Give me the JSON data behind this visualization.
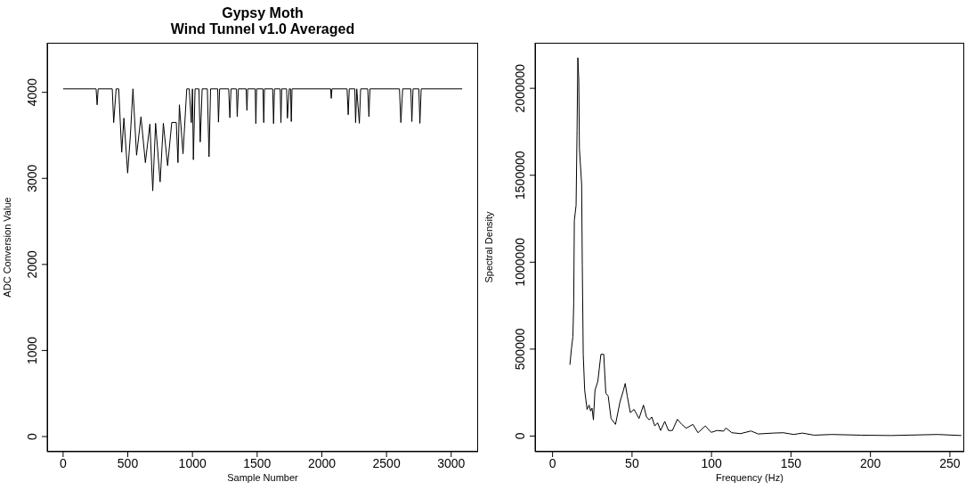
{
  "chart_data": [
    {
      "type": "line",
      "title": "Gypsy Moth",
      "subtitle": "Wind Tunnel v1.0 Averaged",
      "xlabel": "Sample Number",
      "ylabel": "ADC Conversion Value",
      "color": "#000000",
      "grid": false,
      "x": [
        0,
        255,
        263,
        271,
        380,
        391,
        410,
        430,
        453,
        470,
        499,
        520,
        540,
        568,
        602,
        636,
        671,
        693,
        715,
        750,
        775,
        808,
        840,
        875,
        888,
        899,
        927,
        956,
        975,
        991,
        1000,
        1007,
        1020,
        1050,
        1060,
        1075,
        1115,
        1128,
        1140,
        1195,
        1201,
        1210,
        1280,
        1289,
        1298,
        1340,
        1346,
        1355,
        1415,
        1421,
        1427,
        1485,
        1490,
        1496,
        1545,
        1551,
        1557,
        1620,
        1627,
        1634,
        1678,
        1684,
        1690,
        1728,
        1734,
        1748,
        1758,
        1764,
        1770,
        2068,
        2073,
        2078,
        2195,
        2204,
        2212,
        2255,
        2261,
        2270,
        2290,
        2300,
        2355,
        2364,
        2372,
        2600,
        2611,
        2625,
        2688,
        2696,
        2705,
        2750,
        2758,
        2768,
        3085
      ],
      "values": [
        4040,
        4040,
        3855,
        4040,
        4040,
        3648,
        4040,
        4040,
        3303,
        3700,
        3062,
        3500,
        4040,
        3269,
        3717,
        3183,
        3631,
        2855,
        3640,
        2959,
        3640,
        3148,
        3650,
        3650,
        3183,
        3855,
        3286,
        4040,
        4040,
        3648,
        4040,
        3217,
        4040,
        4040,
        3423,
        4040,
        4040,
        3251,
        4040,
        4040,
        3653,
        4040,
        4040,
        3705,
        4040,
        4040,
        3717,
        4040,
        4040,
        3790,
        4040,
        4040,
        3637,
        4040,
        4040,
        3648,
        4040,
        4040,
        3637,
        4040,
        4040,
        3648,
        4040,
        4040,
        3700,
        4040,
        4040,
        3660,
        4040,
        4040,
        3930,
        4040,
        4040,
        3740,
        4040,
        4040,
        3648,
        4040,
        3640,
        4040,
        4040,
        3717,
        4040,
        4040,
        3648,
        4040,
        4040,
        3660,
        4040,
        4040,
        3640,
        4040,
        4040
      ],
      "xlim": [
        -123,
        3208
      ],
      "ylim": [
        -176,
        4576
      ],
      "xticks": [
        0,
        500,
        1000,
        1500,
        2000,
        2500,
        3000
      ],
      "yticks": [
        0,
        1000,
        2000,
        3000,
        4000
      ]
    },
    {
      "type": "line",
      "xlabel": "Frequency (Hz)",
      "ylabel": "Spectral Density",
      "color": "#000000",
      "grid": false,
      "x": [
        10.9,
        11.9,
        12.8,
        13.3,
        13.7,
        14.8,
        15.4,
        15.9,
        16.5,
        16.9,
        18.3,
        18.7,
        19.3,
        20.2,
        21.7,
        23,
        23.9,
        24.8,
        25.7,
        26.7,
        28.5,
        30.4,
        32.2,
        33.5,
        35,
        36.8,
        39.6,
        42.4,
        44.6,
        45.7,
        47,
        48.9,
        51.3,
        54.4,
        57.2,
        59.1,
        60.9,
        62.4,
        64.3,
        66.1,
        68,
        70.6,
        72.9,
        75.4,
        78.5,
        81.3,
        84.1,
        88.3,
        91.5,
        96.1,
        99.8,
        103.5,
        107.6,
        109.1,
        112.8,
        118.3,
        124.8,
        129.4,
        138.7,
        145.2,
        151.7,
        157.2,
        164.6,
        175.7,
        194.3,
        212.8,
        242.4,
        257.2
      ],
      "values": [
        410000,
        504000,
        573000,
        761000,
        1241000,
        1327000,
        1756000,
        2176000,
        2048000,
        1653000,
        1447000,
        984000,
        470000,
        264000,
        153000,
        178000,
        144000,
        161000,
        93000,
        264000,
        315000,
        470000,
        470000,
        247000,
        230000,
        101000,
        67000,
        196000,
        264000,
        302000,
        230000,
        135000,
        153000,
        101000,
        178000,
        110000,
        93000,
        110000,
        58000,
        76000,
        32000,
        84000,
        32000,
        32000,
        96000,
        67000,
        45000,
        67000,
        19000,
        58000,
        21000,
        32000,
        28000,
        46000,
        19000,
        14000,
        29000,
        12000,
        17000,
        19000,
        9000,
        17000,
        5000,
        9000,
        5000,
        3000,
        9000,
        3000
      ],
      "xlim": [
        -11,
        259
      ],
      "ylim": [
        -90000,
        2262000
      ],
      "xticks": [
        0,
        50,
        100,
        150,
        200,
        250
      ],
      "yticks": [
        0,
        500000,
        1000000,
        1500000,
        2000000
      ]
    }
  ]
}
